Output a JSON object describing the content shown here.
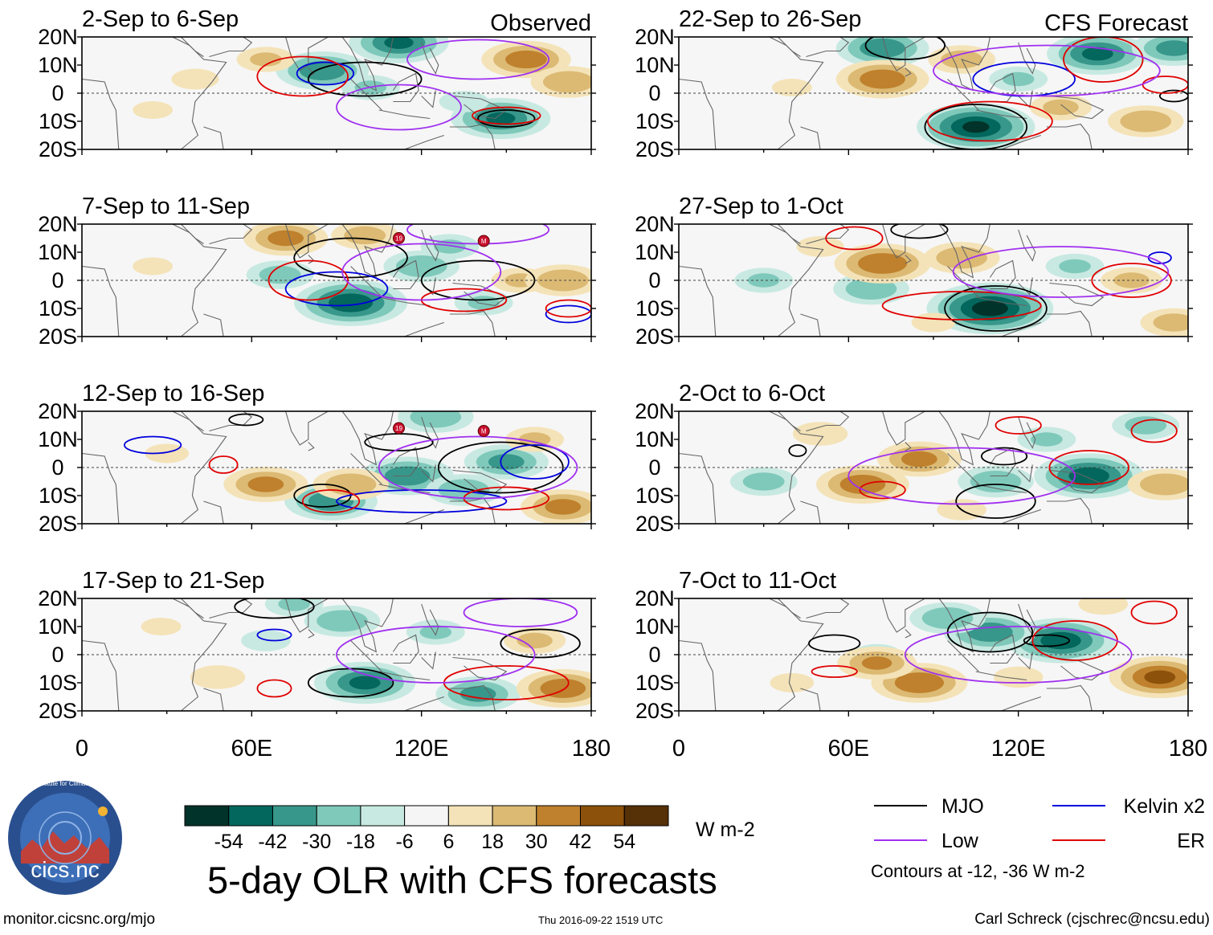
{
  "chart_data": {
    "type": "heatmap",
    "title": "5-day OLR with CFS forecasts",
    "units": "W m-2",
    "xlim": [
      0,
      180
    ],
    "ylim": [
      -20,
      20
    ],
    "xticks": [
      "0",
      "60E",
      "120E",
      "180"
    ],
    "yticks": [
      "20N",
      "10N",
      "0",
      "10S",
      "20S"
    ],
    "colorbar": {
      "bounds": [
        -54,
        -42,
        -30,
        -18,
        -6,
        6,
        18,
        30,
        42,
        54
      ],
      "labels": [
        "-54",
        "-42",
        "-30",
        "-18",
        "-6",
        "6",
        "18",
        "30",
        "42",
        "54"
      ],
      "colors": [
        "#02332a",
        "#03675d",
        "#37978a",
        "#7fc9bb",
        "#c7e9e1",
        "#f5f5f5",
        "#f4e3b8",
        "#dcba74",
        "#bf812d",
        "#8c510a",
        "#563006"
      ]
    },
    "legend": {
      "entries": [
        {
          "name": "MJO",
          "color": "#000000"
        },
        {
          "name": "Kelvin x2",
          "color": "#0000dd"
        },
        {
          "name": "Low",
          "color": "#a030f0"
        },
        {
          "name": "ER",
          "color": "#e00000"
        }
      ],
      "note": "Contours at -12, -36 W m-2"
    },
    "columns": [
      {
        "header": "Observed",
        "panels": [
          {
            "period": "2-Sep to 6-Sep",
            "blobs": [
              [
                85,
                8,
                -40
              ],
              [
                112,
                18,
                -44
              ],
              [
                148,
                -9,
                -44
              ],
              [
                102,
                2,
                -20
              ],
              [
                157,
                12,
                38
              ],
              [
                172,
                4,
                30
              ],
              [
                65,
                12,
                20
              ],
              [
                40,
                5,
                14
              ],
              [
                25,
                -6,
                10
              ],
              [
                135,
                -3,
                -15
              ]
            ],
            "contours": [
              [
                100,
                5,
                20,
                6,
                "black"
              ],
              [
                150,
                -9,
                10,
                3,
                "black"
              ],
              [
                86,
                7,
                10,
                4,
                "blue"
              ],
              [
                78,
                6,
                16,
                7,
                "red"
              ],
              [
                150,
                -8,
                12,
                3,
                "red"
              ],
              [
                112,
                -5,
                22,
                8,
                "purple"
              ],
              [
                140,
                12,
                25,
                7,
                "purple"
              ]
            ]
          },
          {
            "period": "7-Sep to 11-Sep",
            "blobs": [
              [
                95,
                -8,
                -52
              ],
              [
                120,
                5,
                -30
              ],
              [
                142,
                -8,
                -20
              ],
              [
                70,
                2,
                -25
              ],
              [
                155,
                0,
                20
              ],
              [
                72,
                15,
                35
              ],
              [
                170,
                0,
                30
              ],
              [
                100,
                16,
                25
              ],
              [
                25,
                5,
                10
              ],
              [
                130,
                12,
                -20
              ]
            ],
            "contours": [
              [
                95,
                8,
                20,
                7,
                "black"
              ],
              [
                140,
                0,
                20,
                7,
                "black"
              ],
              [
                90,
                -3,
                18,
                6,
                "blue"
              ],
              [
                172,
                -12,
                8,
                3,
                "blue"
              ],
              [
                80,
                0,
                14,
                7,
                "red"
              ],
              [
                135,
                -7,
                15,
                4,
                "red"
              ],
              [
                172,
                -10,
                8,
                3,
                "red"
              ],
              [
                120,
                3,
                28,
                10,
                "purple"
              ],
              [
                140,
                18,
                25,
                5,
                "purple"
              ]
            ],
            "markers": [
              [
                112,
                15,
                "19"
              ],
              [
                142,
                14,
                "M"
              ]
            ]
          },
          {
            "period": "12-Sep to 16-Sep",
            "blobs": [
              [
                115,
                -3,
                -40
              ],
              [
                135,
                -8,
                -30
              ],
              [
                150,
                2,
                -35
              ],
              [
                88,
                -12,
                -40
              ],
              [
                125,
                18,
                -30
              ],
              [
                65,
                -6,
                35
              ],
              [
                95,
                -6,
                30
              ],
              [
                170,
                -14,
                35
              ],
              [
                160,
                10,
                20
              ],
              [
                30,
                5,
                12
              ]
            ],
            "contours": [
              [
                85,
                -10,
                10,
                4,
                "black"
              ],
              [
                148,
                0,
                22,
                9,
                "black"
              ],
              [
                112,
                9,
                12,
                3,
                "black"
              ],
              [
                58,
                17,
                6,
                2,
                "black"
              ],
              [
                120,
                -12,
                30,
                4,
                "blue"
              ],
              [
                160,
                2,
                12,
                6,
                "blue"
              ],
              [
                25,
                8,
                10,
                3,
                "blue"
              ],
              [
                88,
                -12,
                10,
                4,
                "red"
              ],
              [
                150,
                -11,
                15,
                4,
                "red"
              ],
              [
                50,
                1,
                5,
                3,
                "red"
              ],
              [
                140,
                0,
                35,
                11,
                "purple"
              ]
            ],
            "markers": [
              [
                112,
                14,
                "19"
              ],
              [
                142,
                13,
                "M"
              ]
            ]
          },
          {
            "period": "17-Sep to 21-Sep",
            "blobs": [
              [
                100,
                -10,
                -45
              ],
              [
                140,
                -14,
                -35
              ],
              [
                92,
                12,
                -30
              ],
              [
                125,
                8,
                -20
              ],
              [
                65,
                5,
                -15
              ],
              [
                170,
                -12,
                40
              ],
              [
                160,
                5,
                22
              ],
              [
                48,
                -8,
                18
              ],
              [
                28,
                10,
                10
              ],
              [
                75,
                18,
                -20
              ]
            ],
            "contours": [
              [
                95,
                -10,
                15,
                5,
                "black"
              ],
              [
                162,
                4,
                14,
                5,
                "black"
              ],
              [
                68,
                17,
                14,
                4,
                "black"
              ],
              [
                68,
                7,
                6,
                2,
                "blue"
              ],
              [
                68,
                -12,
                6,
                3,
                "red"
              ],
              [
                150,
                -10,
                22,
                6,
                "red"
              ],
              [
                125,
                0,
                35,
                10,
                "purple"
              ],
              [
                155,
                15,
                20,
                5,
                "purple"
              ]
            ]
          }
        ]
      },
      {
        "header": "CFS Forecast",
        "panels": [
          {
            "period": "22-Sep to 26-Sep",
            "blobs": [
              [
                105,
                -12,
                -55
              ],
              [
                72,
                16,
                -40
              ],
              [
                148,
                14,
                -45
              ],
              [
                175,
                16,
                -35
              ],
              [
                120,
                5,
                -20
              ],
              [
                72,
                5,
                40
              ],
              [
                165,
                -10,
                30
              ],
              [
                100,
                12,
                25
              ],
              [
                135,
                -5,
                22
              ],
              [
                40,
                2,
                10
              ]
            ],
            "contours": [
              [
                105,
                -12,
                18,
                8,
                "black"
              ],
              [
                80,
                17,
                14,
                5,
                "black"
              ],
              [
                175,
                -1,
                5,
                2,
                "black"
              ],
              [
                122,
                5,
                18,
                6,
                "blue"
              ],
              [
                110,
                -10,
                22,
                7,
                "red"
              ],
              [
                150,
                12,
                14,
                8,
                "red"
              ],
              [
                172,
                3,
                8,
                3,
                "red"
              ],
              [
                130,
                8,
                40,
                9,
                "purple"
              ]
            ]
          },
          {
            "period": "27-Sep to 1-Oct",
            "blobs": [
              [
                110,
                -10,
                -60
              ],
              [
                68,
                -3,
                -30
              ],
              [
                30,
                0,
                -20
              ],
              [
                140,
                5,
                -20
              ],
              [
                72,
                6,
                42
              ],
              [
                100,
                8,
                30
              ],
              [
                160,
                0,
                22
              ],
              [
                175,
                -15,
                25
              ],
              [
                50,
                12,
                14
              ],
              [
                90,
                -15,
                12
              ]
            ],
            "contours": [
              [
                112,
                -10,
                18,
                8,
                "black"
              ],
              [
                85,
                18,
                10,
                3,
                "black"
              ],
              [
                62,
                15,
                10,
                4,
                "red"
              ],
              [
                100,
                -9,
                28,
                5,
                "red"
              ],
              [
                160,
                0,
                14,
                6,
                "red"
              ],
              [
                170,
                8,
                4,
                2,
                "blue"
              ],
              [
                135,
                3,
                38,
                9,
                "purple"
              ]
            ]
          },
          {
            "period": "2-Oct to 6-Oct",
            "blobs": [
              [
                145,
                -3,
                -50
              ],
              [
                112,
                -5,
                -30
              ],
              [
                30,
                -5,
                -25
              ],
              [
                130,
                10,
                -20
              ],
              [
                165,
                15,
                -25
              ],
              [
                65,
                -6,
                40
              ],
              [
                85,
                3,
                35
              ],
              [
                172,
                -6,
                30
              ],
              [
                50,
                12,
                18
              ],
              [
                100,
                -15,
                15
              ]
            ],
            "contours": [
              [
                112,
                -12,
                14,
                6,
                "black"
              ],
              [
                115,
                4,
                8,
                3,
                "black"
              ],
              [
                42,
                6,
                3,
                2,
                "black"
              ],
              [
                72,
                -8,
                8,
                3,
                "red"
              ],
              [
                145,
                0,
                14,
                6,
                "red"
              ],
              [
                120,
                15,
                8,
                3,
                "red"
              ],
              [
                168,
                13,
                8,
                4,
                "red"
              ],
              [
                100,
                -3,
                40,
                10,
                "purple"
              ]
            ]
          },
          {
            "period": "7-Oct to 11-Oct",
            "blobs": [
              [
                135,
                5,
                -50
              ],
              [
                110,
                8,
                -40
              ],
              [
                95,
                13,
                -30
              ],
              [
                70,
                0,
                -15
              ],
              [
                170,
                -8,
                45
              ],
              [
                85,
                -10,
                42
              ],
              [
                70,
                -3,
                32
              ],
              [
                150,
                18,
                15
              ],
              [
                40,
                -10,
                12
              ],
              [
                120,
                -8,
                15
              ]
            ],
            "contours": [
              [
                110,
                8,
                15,
                7,
                "black"
              ],
              [
                130,
                5,
                8,
                2,
                "black"
              ],
              [
                55,
                4,
                9,
                3,
                "black"
              ],
              [
                140,
                5,
                15,
                7,
                "red"
              ],
              [
                55,
                -6,
                8,
                2,
                "red"
              ],
              [
                168,
                15,
                8,
                4,
                "red"
              ],
              [
                120,
                0,
                40,
                10,
                "purple"
              ]
            ]
          }
        ]
      }
    ]
  },
  "footer": {
    "logo_text": "cics.nc",
    "logo_ring_text": "Cooperative Institute for Climate and Satellites",
    "url": "monitor.cicsnc.org/mjo",
    "timestamp": "Thu 2016-09-22 1519 UTC",
    "credit": "Carl Schreck (cjschrec@ncsu.edu)"
  }
}
